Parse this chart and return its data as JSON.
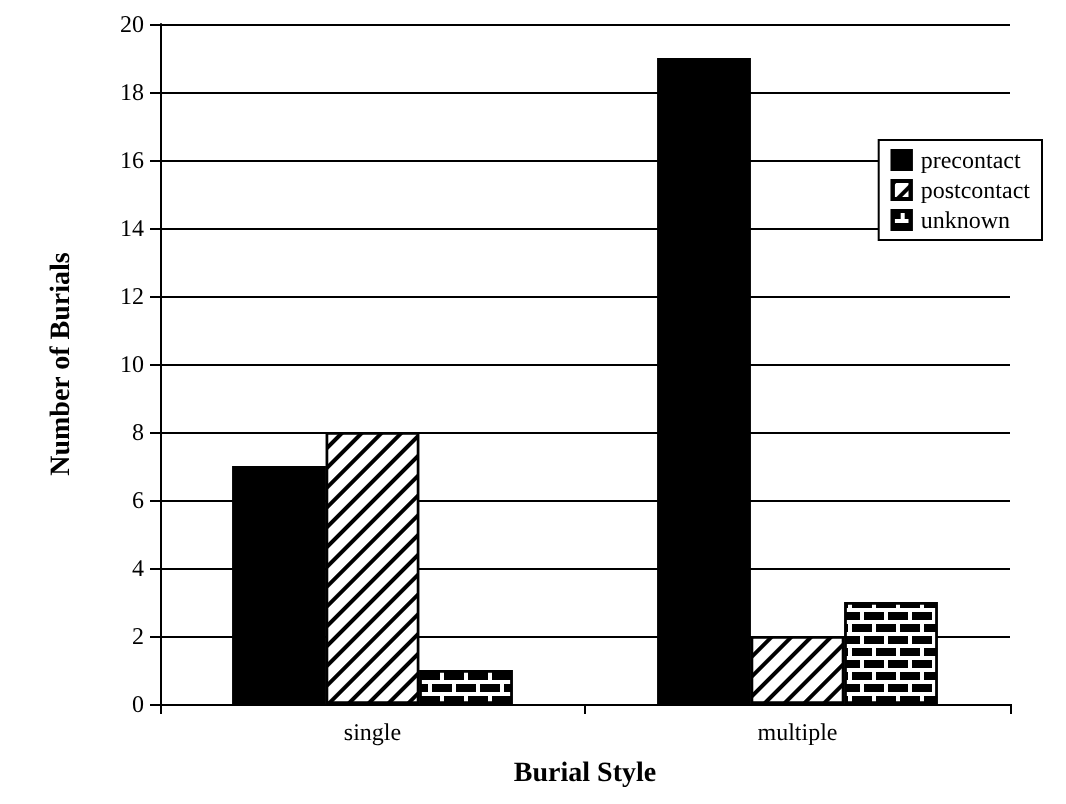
{
  "chart_data": {
    "type": "bar",
    "xlabel": "Burial Style",
    "ylabel": "Number of Burials",
    "categories": [
      "single",
      "multiple"
    ],
    "series": [
      {
        "name": "precontact",
        "color": "#000000",
        "values": [
          7,
          19
        ]
      },
      {
        "name": "postcontact",
        "color": "#ffffff",
        "values": [
          8,
          2
        ]
      },
      {
        "name": "unknown",
        "color": "#ffffff",
        "values": [
          1,
          3
        ]
      }
    ],
    "ylim": [
      0,
      20
    ],
    "yticks": [
      0,
      2,
      4,
      6,
      8,
      10,
      12,
      14,
      16,
      18,
      20
    ],
    "grid": "y",
    "legend": "top right"
  }
}
